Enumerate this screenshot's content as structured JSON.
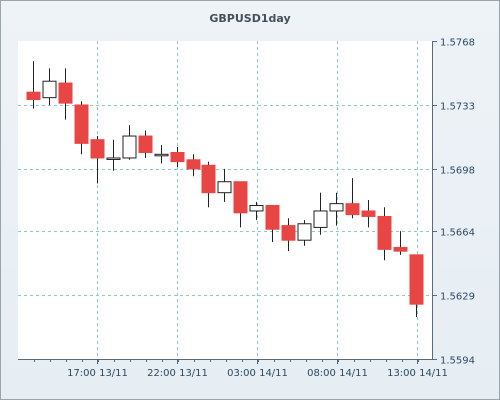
{
  "chart_data": {
    "type": "candlestick",
    "title": "GBPUSD1day",
    "y_ticks": [
      1.5594,
      1.5629,
      1.5664,
      1.5698,
      1.5733,
      1.5768
    ],
    "x_ticks": [
      "17:00 13/11",
      "22:00 13/11",
      "03:00 14/11",
      "08:00 14/11",
      "13:00 14/11"
    ],
    "ylim": [
      1.5594,
      1.5768
    ],
    "grid": true,
    "colors": {
      "up": "#ffffff",
      "down": "#e84545",
      "wick": "#222222",
      "grid": "#8fc7cf",
      "plot_bg": "#ffffff",
      "axis": "#5b6a78"
    },
    "candles": [
      {
        "open": 1.574,
        "high": 1.5757,
        "low": 1.5731,
        "close": 1.5736
      },
      {
        "open": 1.5737,
        "high": 1.5753,
        "low": 1.5733,
        "close": 1.5746
      },
      {
        "open": 1.5745,
        "high": 1.5753,
        "low": 1.5725,
        "close": 1.5734
      },
      {
        "open": 1.5733,
        "high": 1.5735,
        "low": 1.5706,
        "close": 1.5712
      },
      {
        "open": 1.5714,
        "high": 1.5716,
        "low": 1.569,
        "close": 1.5704
      },
      {
        "open": 1.5704,
        "high": 1.5714,
        "low": 1.5697,
        "close": 1.5704
      },
      {
        "open": 1.5704,
        "high": 1.5722,
        "low": 1.5703,
        "close": 1.5716
      },
      {
        "open": 1.5716,
        "high": 1.5719,
        "low": 1.5704,
        "close": 1.5707
      },
      {
        "open": 1.5706,
        "high": 1.5711,
        "low": 1.5701,
        "close": 1.5706
      },
      {
        "open": 1.5707,
        "high": 1.571,
        "low": 1.5699,
        "close": 1.5702
      },
      {
        "open": 1.5703,
        "high": 1.5706,
        "low": 1.5694,
        "close": 1.5698
      },
      {
        "open": 1.57,
        "high": 1.5702,
        "low": 1.5677,
        "close": 1.5685
      },
      {
        "open": 1.5685,
        "high": 1.5698,
        "low": 1.568,
        "close": 1.5691
      },
      {
        "open": 1.5691,
        "high": 1.5691,
        "low": 1.5666,
        "close": 1.5674
      },
      {
        "open": 1.5675,
        "high": 1.568,
        "low": 1.567,
        "close": 1.5678
      },
      {
        "open": 1.5678,
        "high": 1.5678,
        "low": 1.5658,
        "close": 1.5665
      },
      {
        "open": 1.5667,
        "high": 1.5671,
        "low": 1.5653,
        "close": 1.5659
      },
      {
        "open": 1.5659,
        "high": 1.567,
        "low": 1.5656,
        "close": 1.5668
      },
      {
        "open": 1.5666,
        "high": 1.5685,
        "low": 1.5662,
        "close": 1.5675
      },
      {
        "open": 1.5675,
        "high": 1.5685,
        "low": 1.5667,
        "close": 1.5679
      },
      {
        "open": 1.5679,
        "high": 1.5693,
        "low": 1.5671,
        "close": 1.5673
      },
      {
        "open": 1.5675,
        "high": 1.5681,
        "low": 1.5666,
        "close": 1.5672
      },
      {
        "open": 1.5672,
        "high": 1.5677,
        "low": 1.5648,
        "close": 1.5654
      },
      {
        "open": 1.5655,
        "high": 1.5664,
        "low": 1.5651,
        "close": 1.5653
      },
      {
        "open": 1.5651,
        "high": 1.5651,
        "low": 1.5617,
        "close": 1.5624
      }
    ]
  }
}
